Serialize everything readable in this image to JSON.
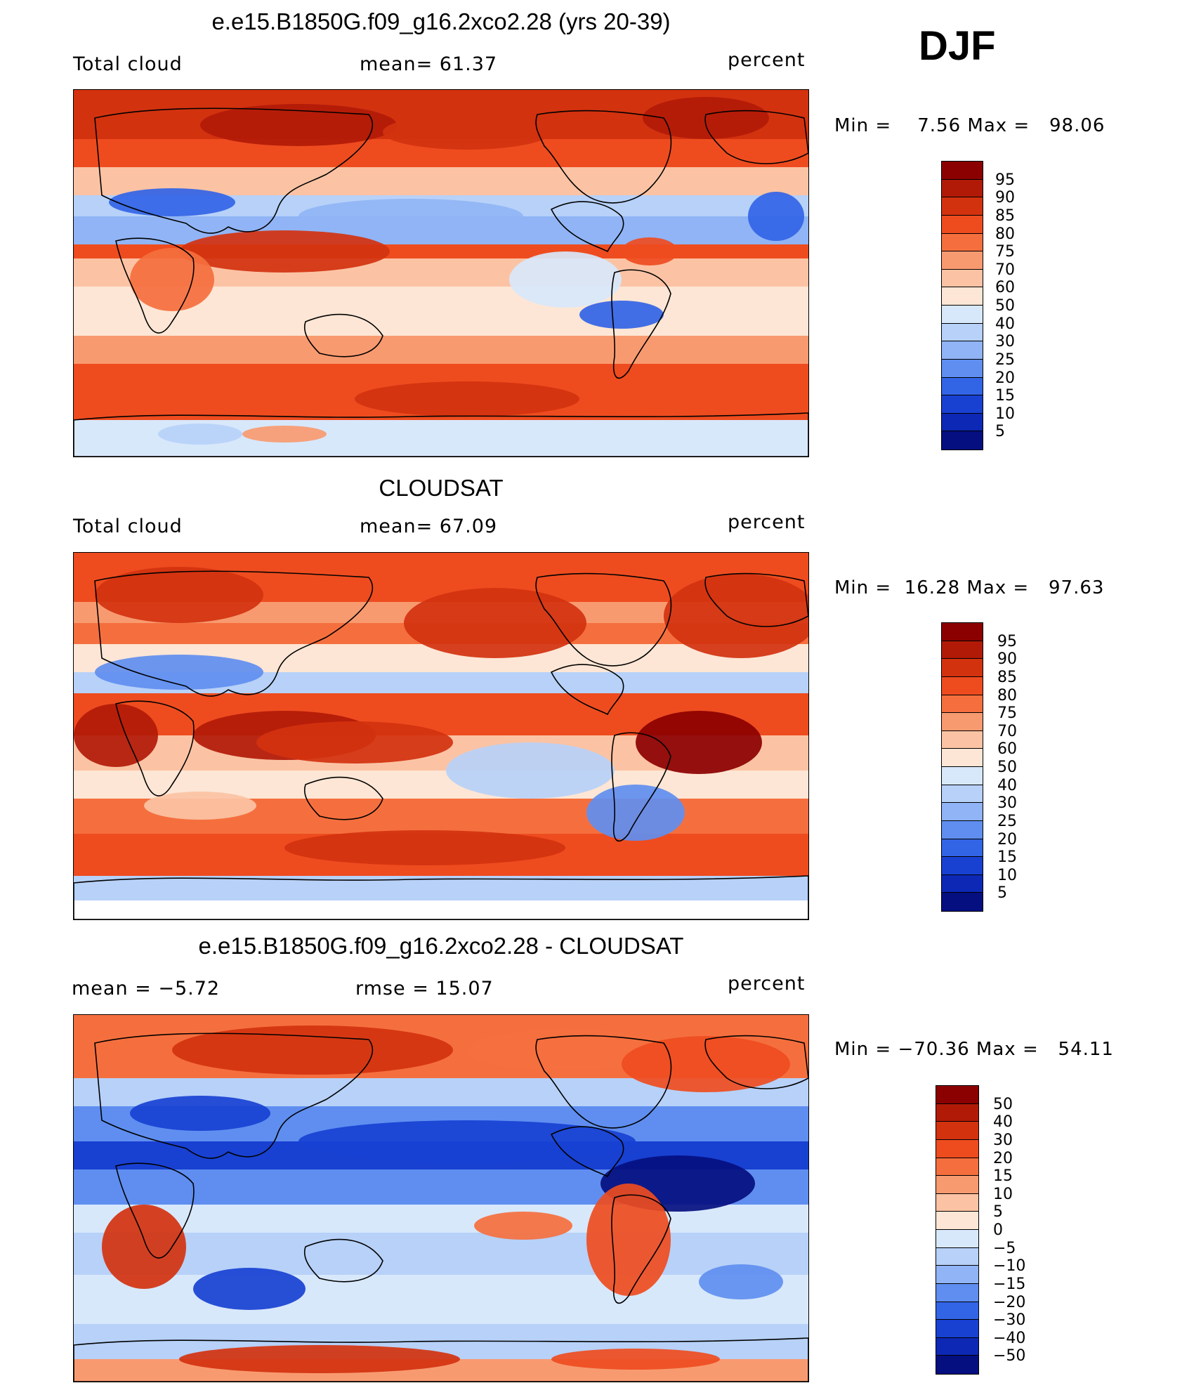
{
  "season": "DJF",
  "panels": [
    {
      "title": "e.e15.B1850G.f09_g16.2xco2.28 (yrs 20-39)",
      "left_label": "Total cloud",
      "center_label": "mean=   61.37",
      "units": "percent",
      "minmax": "Min =    7.56 Max =   98.06",
      "map_name": "model-total-cloud-map",
      "scheme": "model",
      "colorbar_ticks": [
        "95",
        "90",
        "85",
        "80",
        "75",
        "70",
        "60",
        "50",
        "40",
        "30",
        "25",
        "20",
        "15",
        "10",
        "5"
      ],
      "colorbar_colors": [
        "#8b0000",
        "#b21a08",
        "#d3320f",
        "#ee4c1f",
        "#f56f3e",
        "#f89a70",
        "#fbc3a4",
        "#fde6d5",
        "#d8e8fb",
        "#b7d1f8",
        "#90b4f5",
        "#5f8ef0",
        "#3264e6",
        "#1841d2",
        "#0d28b5",
        "#050f80"
      ]
    },
    {
      "title": "CLOUDSAT",
      "left_label": "Total cloud",
      "center_label": "mean=   67.09",
      "units": "percent",
      "minmax": "Min =  16.28 Max =   97.63",
      "map_name": "cloudsat-total-cloud-map",
      "scheme": "obs",
      "colorbar_ticks": [
        "95",
        "90",
        "85",
        "80",
        "75",
        "70",
        "60",
        "50",
        "40",
        "30",
        "25",
        "20",
        "15",
        "10",
        "5"
      ],
      "colorbar_colors": [
        "#8b0000",
        "#b21a08",
        "#d3320f",
        "#ee4c1f",
        "#f56f3e",
        "#f89a70",
        "#fbc3a4",
        "#fde6d5",
        "#d8e8fb",
        "#b7d1f8",
        "#90b4f5",
        "#5f8ef0",
        "#3264e6",
        "#1841d2",
        "#0d28b5",
        "#050f80"
      ]
    },
    {
      "title": "e.e15.B1850G.f09_g16.2xco2.28 - CLOUDSAT",
      "left_label": "mean =   −5.72",
      "center_label": "rmse =    15.07",
      "units": "percent",
      "minmax": "Min = −70.36 Max =   54.11",
      "map_name": "difference-map",
      "scheme": "diff",
      "colorbar_ticks": [
        "50",
        "40",
        "30",
        "20",
        "15",
        "10",
        "5",
        "0",
        "−5",
        "−10",
        "−15",
        "−20",
        "−30",
        "−40",
        "−50"
      ],
      "colorbar_colors": [
        "#8b0000",
        "#b21a08",
        "#d3320f",
        "#ee4c1f",
        "#f56f3e",
        "#f89a70",
        "#fbc3a4",
        "#fde6d5",
        "#d8e8fb",
        "#b7d1f8",
        "#90b4f5",
        "#5f8ef0",
        "#3264e6",
        "#1841d2",
        "#0d28b5",
        "#050f80"
      ]
    }
  ]
}
